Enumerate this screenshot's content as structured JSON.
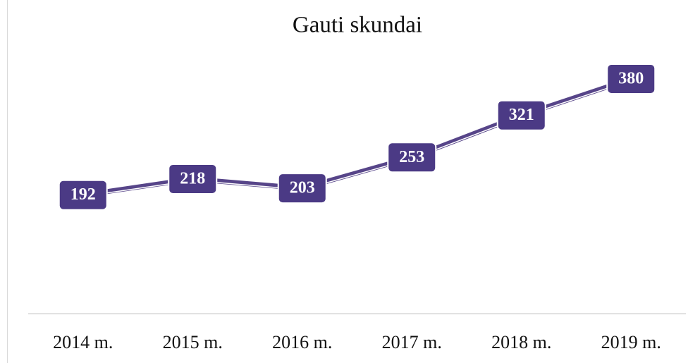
{
  "chart_data": {
    "type": "line",
    "title": "Gauti skundai",
    "categories": [
      "2014 m.",
      "2015 m.",
      "2016 m.",
      "2017 m.",
      "2018 m.",
      "2019 m."
    ],
    "values": [
      192,
      218,
      203,
      253,
      321,
      380
    ],
    "color": "#574589"
  }
}
